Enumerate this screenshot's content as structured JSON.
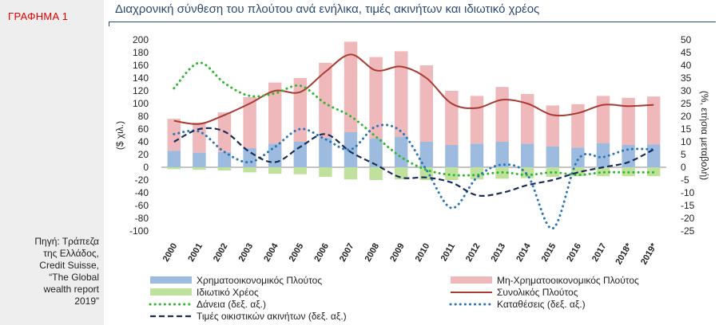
{
  "figure_label": "ΓΡΑΦΗΜΑ 1",
  "title": "Διαχρονική σύνθεση του πλούτου ανά ενήλικα, τιμές ακινήτων και ιδιωτικό χρέος",
  "source_lines": [
    "Πηγή: Τράπεζα",
    "της Ελλάδος,",
    "Credit Suisse,",
    "“The Global",
    "wealth report",
    "2019”"
  ],
  "colors": {
    "financial": "#9dbbdf",
    "nonfinancial": "#efb8bb",
    "debt": "#bfe19c",
    "total": "#a83c32",
    "loans": "#2eb82e",
    "deposits": "#2a74b8",
    "house_prices": "#1a2d5a",
    "title": "#2e4a6e",
    "label_red": "#e00000"
  },
  "chart_data": {
    "type": "bar",
    "categories": [
      "2000",
      "2001",
      "2002",
      "2003",
      "2004",
      "2005",
      "2006",
      "2007",
      "2008",
      "2009",
      "2010",
      "2011",
      "2012",
      "2013",
      "2014",
      "2015",
      "2016",
      "2017",
      "2018*",
      "2019*"
    ],
    "ylabel": "($ χιλ.)",
    "y2label": "(%, ετήσια μεταβολή)",
    "ylim": [
      -100,
      200
    ],
    "yticks": [
      -100,
      -80,
      -60,
      -40,
      -20,
      0,
      20,
      40,
      60,
      80,
      100,
      120,
      140,
      160,
      180,
      200
    ],
    "y2lim": [
      -25,
      50
    ],
    "y2ticks": [
      -25,
      -20,
      -15,
      -10,
      -5,
      0,
      5,
      10,
      15,
      20,
      25,
      30,
      35,
      40,
      45,
      50
    ],
    "bar_series": [
      {
        "key": "financial",
        "name": "Χρηματοοικονομικός Πλούτος",
        "axis": "left",
        "values": [
          26,
          23,
          24,
          30,
          37,
          40,
          46,
          55,
          45,
          48,
          40,
          35,
          37,
          40,
          37,
          33,
          31,
          38,
          35,
          36
        ]
      },
      {
        "key": "nonfinancial",
        "name": "Μη-Χρηματοοικονομικός Πλούτος",
        "axis": "left",
        "values": [
          50,
          47,
          62,
          80,
          96,
          100,
          118,
          142,
          128,
          134,
          120,
          85,
          75,
          86,
          78,
          64,
          68,
          74,
          74,
          75
        ]
      },
      {
        "key": "debt",
        "name": "Ιδιωτικό Χρέος",
        "axis": "left",
        "values": [
          -3,
          -4,
          -5,
          -8,
          -10,
          -11,
          -15,
          -19,
          -20,
          -19,
          -20,
          -20,
          -19,
          -18,
          -17,
          -15,
          -14,
          -14,
          -14,
          -14
        ]
      }
    ],
    "line_series": [
      {
        "key": "total",
        "name": "Συνολικός Πλούτος",
        "axis": "left",
        "style": "solid",
        "values": [
          73,
          68,
          82,
          100,
          120,
          118,
          150,
          177,
          152,
          158,
          140,
          100,
          93,
          106,
          100,
          82,
          85,
          98,
          96,
          98
        ]
      },
      {
        "key": "loans",
        "name": "Δάνεια (δεξ. αξ.)",
        "axis": "right",
        "style": "dotted",
        "values": [
          31,
          41,
          33,
          28,
          29,
          32,
          25,
          20,
          12,
          4,
          -1,
          -3,
          -3,
          -2,
          -3,
          -2,
          -3,
          -2,
          -2,
          -2
        ]
      },
      {
        "key": "deposits",
        "name": "Καταθέσεις (δεξ. αξ.)",
        "axis": "right",
        "style": "dotted",
        "values": [
          13,
          14,
          6,
          2,
          8,
          15,
          11,
          7,
          16,
          14,
          -1,
          -16,
          -4,
          1,
          -3,
          -24,
          3,
          4,
          7,
          7
        ]
      },
      {
        "key": "house_prices",
        "name": "Τιμές οικιστικών ακινήτων  (δεξ. αξ.)",
        "axis": "right",
        "style": "dashed",
        "values": [
          10,
          15,
          14,
          6,
          2,
          8,
          13,
          6,
          1,
          -4,
          -4,
          -6,
          -11,
          -10,
          -7,
          -5,
          -2,
          0,
          2,
          7
        ]
      }
    ],
    "legend_order": [
      "financial",
      "nonfinancial",
      "debt",
      "total",
      "loans",
      "deposits",
      "house_prices"
    ],
    "legend_position": "bottom"
  }
}
